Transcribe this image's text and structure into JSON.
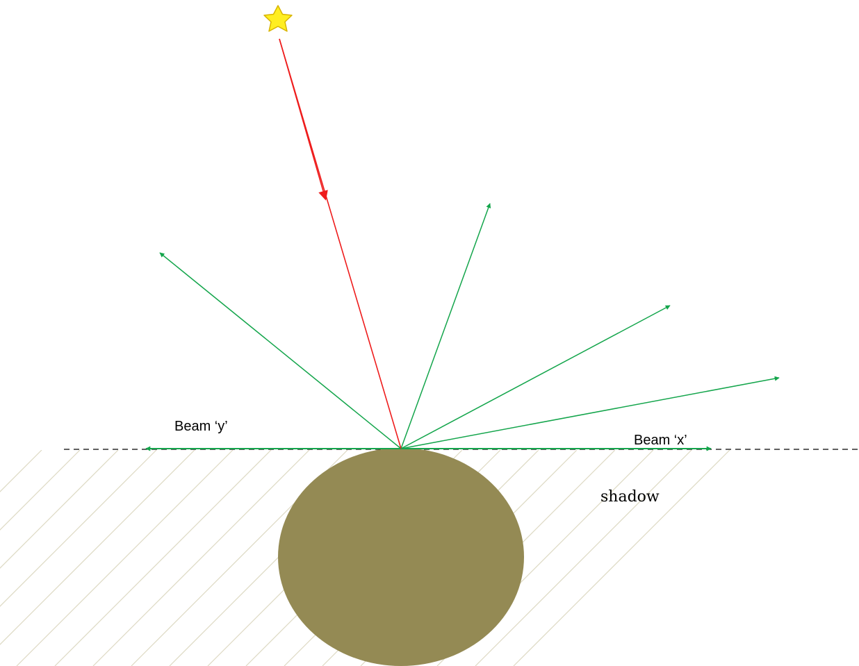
{
  "labels": {
    "beam_y": "Beam ‘y’",
    "beam_x": "Beam ‘x’",
    "shadow": "shadow"
  },
  "colors": {
    "incident_ray": "#ee1c1c",
    "scattered_rays": "#13a54b",
    "sphere": "#948a54",
    "shadow_hatch": "#ddd9c3",
    "star_fill": "#ffee22",
    "star_stroke": "#d8b400",
    "horizon": "#000000"
  },
  "icons": {
    "light_source": "star-icon"
  }
}
